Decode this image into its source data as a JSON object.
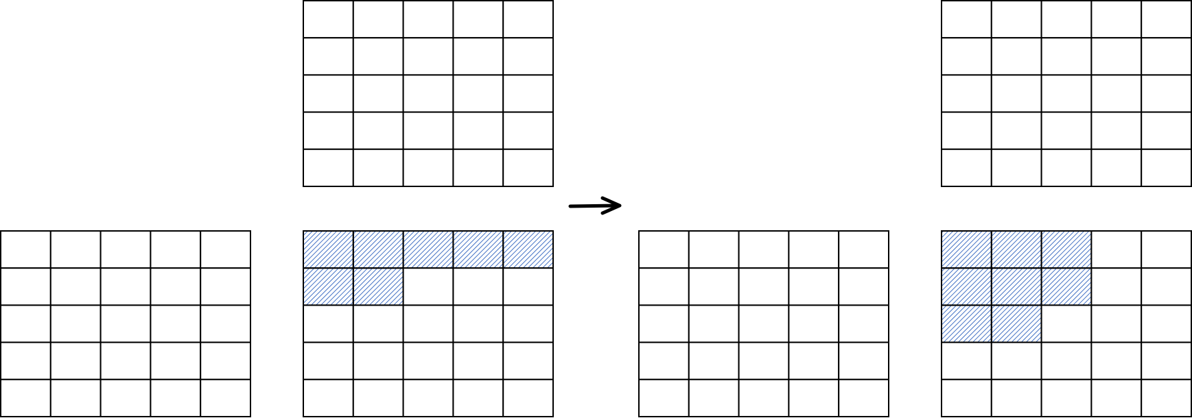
{
  "hatch_color": "#4472C4",
  "line_color": "#000000",
  "grid_size": {
    "rows": 5,
    "cols": 5
  },
  "grids": [
    {
      "id": "left-before-bottom",
      "shaded": []
    },
    {
      "id": "left-before-top",
      "shaded": []
    },
    {
      "id": "left-before-middle",
      "shaded": [
        [
          0,
          0
        ],
        [
          0,
          1
        ],
        [
          0,
          2
        ],
        [
          0,
          3
        ],
        [
          0,
          4
        ],
        [
          1,
          0
        ],
        [
          1,
          1
        ]
      ]
    },
    {
      "id": "right-after-bottom",
      "shaded": []
    },
    {
      "id": "right-after-top",
      "shaded": []
    },
    {
      "id": "right-after-middle",
      "shaded": [
        [
          0,
          0
        ],
        [
          0,
          1
        ],
        [
          0,
          2
        ],
        [
          1,
          0
        ],
        [
          1,
          1
        ],
        [
          1,
          2
        ],
        [
          2,
          0
        ],
        [
          2,
          1
        ]
      ]
    }
  ],
  "arrow": {
    "direction": "right",
    "icon": "arrow-right-icon"
  }
}
